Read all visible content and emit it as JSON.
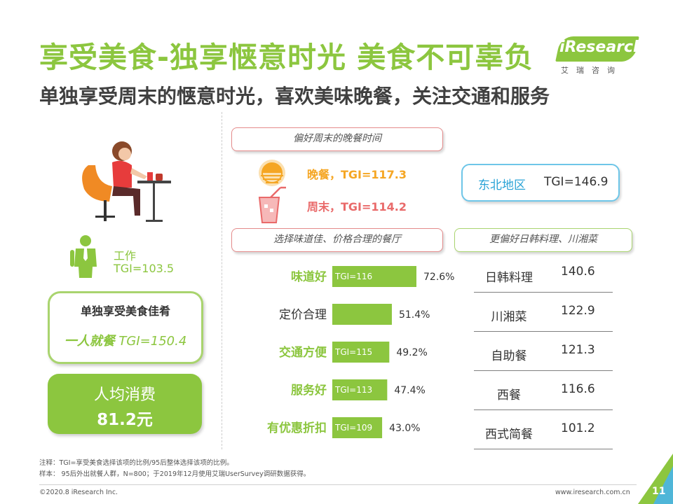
{
  "header": {
    "title": "享受美食-独享惬意时光 美食不可辜负",
    "subtitle": "单独享受周末的惬意时光，喜欢美味晚餐，关注交通和服务"
  },
  "logo": {
    "brand": "iResearch",
    "sub": "艾瑞咨询"
  },
  "left": {
    "work_label": "工作",
    "work_tgi": "TGI=103.5",
    "solo_title": "单独享受美食佳肴",
    "solo_bold": "一人就餐",
    "solo_tgi": " TGI=150.4",
    "spend_label": "人均消费",
    "spend_value": "81.2元"
  },
  "dinner_section": {
    "tag": "偏好周末的晚餐时间",
    "dinner_tgi": "晚餐，TGI=117.3",
    "weekend_tgi": "周末，TGI=114.2"
  },
  "region": {
    "label": "东北地区",
    "tgi": "TGI=146.9"
  },
  "restaurant_tag": "选择味道佳、价格合理的餐厅",
  "cuisine": {
    "tag": "更偏好日韩料理、川湘菜",
    "rows": [
      {
        "name": "日韩料理",
        "value": "140.6"
      },
      {
        "name": "川湘菜",
        "value": "122.9"
      },
      {
        "name": "自助餐",
        "value": "121.3"
      },
      {
        "name": "西餐",
        "value": "116.6"
      },
      {
        "name": "西式简餐",
        "value": "101.2"
      }
    ]
  },
  "chart_data": {
    "type": "bar",
    "orientation": "horizontal",
    "categories": [
      "味道好",
      "定价合理",
      "交通方便",
      "服务好",
      "有优惠折扣"
    ],
    "values": [
      72.6,
      51.4,
      49.2,
      47.4,
      43.0
    ],
    "value_labels": [
      "72.6%",
      "51.4%",
      "49.2%",
      "47.4%",
      "43.0%"
    ],
    "bar_labels": [
      "TGI=116",
      "",
      "TGI=115",
      "TGI=113",
      "TGI=109"
    ],
    "highlight": [
      true,
      false,
      true,
      true,
      true
    ],
    "unit": "%",
    "bar_color": "#8cc63f",
    "highlight_label_color": "#8cc63f",
    "label_color": "#333333"
  },
  "footer": {
    "note1": "注释：TGI=享受美食选择该项的比例/95后整体选择该项的比例。",
    "note2": "样本： 95后外出就餐人群，N=800；于2019年12月使用艾瑞UserSurvey调研数据获得。",
    "copyright": "©2020.8 iResearch Inc.",
    "website": "www.iresearch.com.cn",
    "page": "11"
  },
  "colors": {
    "accent": "#8cc63f",
    "dinner": "#f5a623",
    "weekend": "#e96a6a",
    "region": "#29a3d6"
  }
}
